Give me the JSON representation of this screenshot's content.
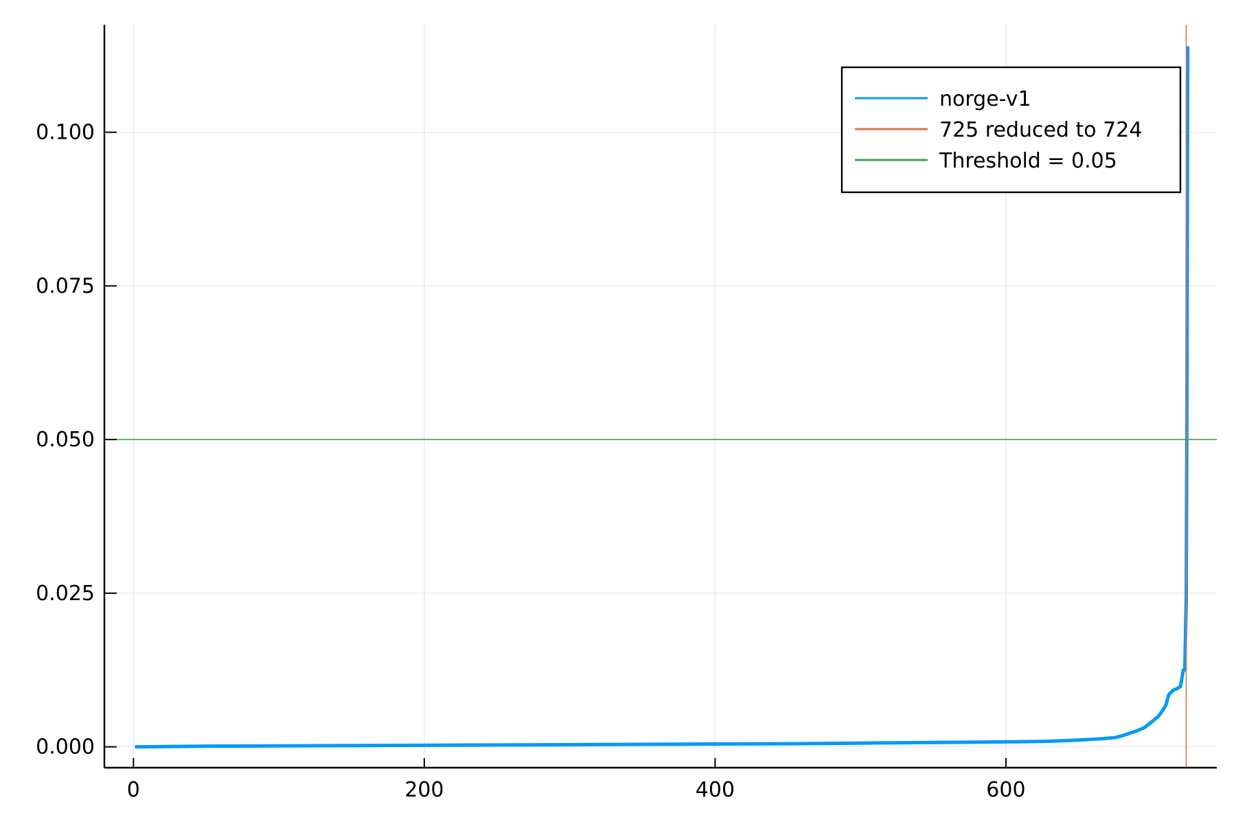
{
  "chart_data": {
    "type": "line",
    "title": "",
    "xlabel": "",
    "ylabel": "",
    "xlim": [
      -20,
      745
    ],
    "ylim": [
      -0.0034,
      0.1175
    ],
    "xticks": [
      0,
      200,
      400,
      600
    ],
    "xtick_labels": [
      "0",
      "200",
      "400",
      "600"
    ],
    "yticks": [
      0,
      0.025,
      0.05,
      0.075,
      0.1
    ],
    "ytick_labels": [
      "0.000",
      "0.025",
      "0.050",
      "0.075",
      "0.100"
    ],
    "grid": true,
    "legend_position": "top-right",
    "series": [
      {
        "name": "norge-v1",
        "color": "#009af9",
        "kind": "line",
        "x": [
          1,
          50,
          100,
          150,
          200,
          250,
          300,
          350,
          400,
          450,
          500,
          550,
          600,
          630,
          650,
          665,
          675,
          680,
          685,
          690,
          695,
          700,
          705,
          708,
          710,
          712,
          715,
          718,
          720,
          722,
          723,
          724,
          724.5,
          725
        ],
        "y": [
          0.0,
          0.0001,
          0.00015,
          0.0002,
          0.00025,
          0.0003,
          0.00035,
          0.0004,
          0.00045,
          0.0005,
          0.0006,
          0.0007,
          0.0008,
          0.0009,
          0.0011,
          0.0013,
          0.0015,
          0.0018,
          0.0022,
          0.0026,
          0.0031,
          0.004,
          0.005,
          0.006,
          0.0068,
          0.0085,
          0.0092,
          0.0095,
          0.0098,
          0.0125,
          0.0125,
          0.024,
          0.06,
          0.114
        ]
      },
      {
        "name": "725 reduced to 724",
        "color": "#e26f46",
        "kind": "vline",
        "x": 724
      },
      {
        "name": "Threshold = 0.05",
        "color": "#3da44d",
        "kind": "hline",
        "y": 0.05
      }
    ]
  }
}
